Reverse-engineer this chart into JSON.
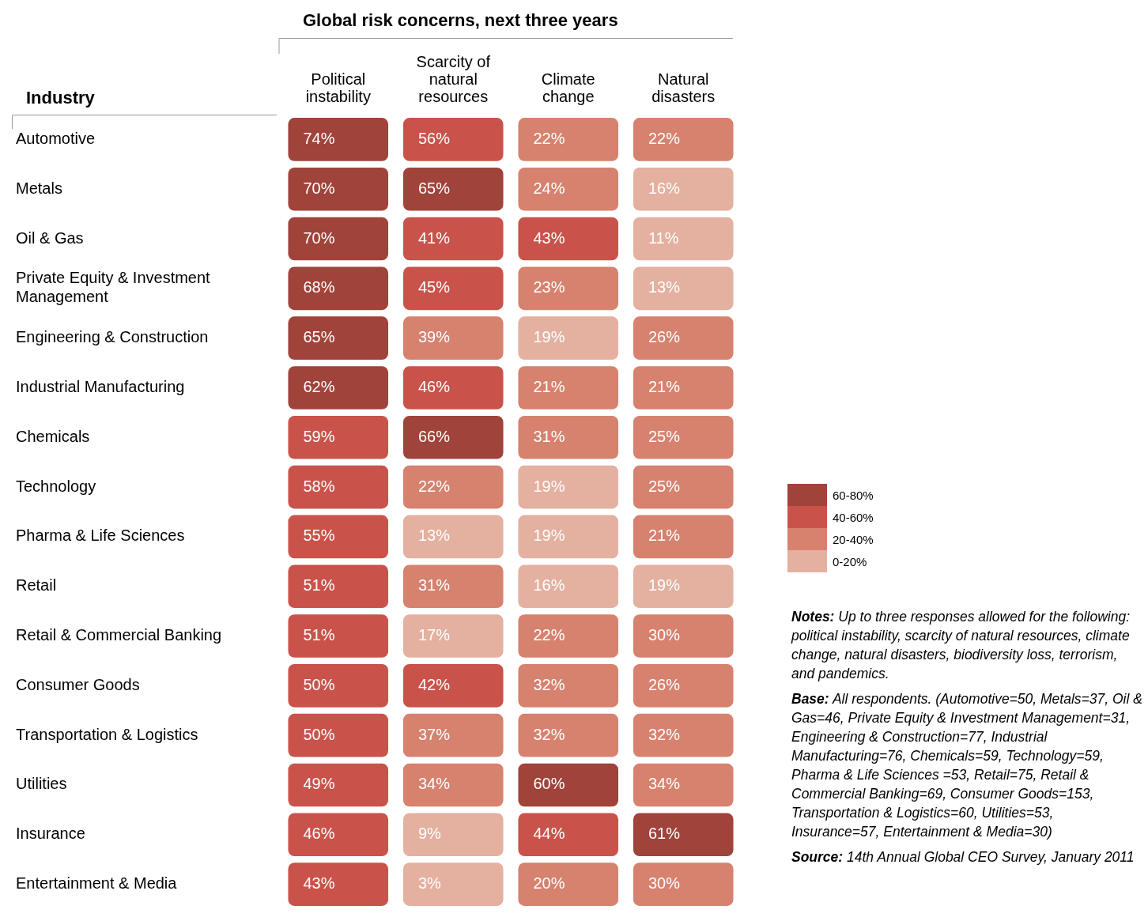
{
  "chart_data": {
    "type": "heatmap",
    "title": "Global risk concerns, next three years",
    "ylabel": "Industry",
    "categories": [
      "Political instability",
      "Scarcity of natural resources",
      "Climate change",
      "Natural disasters"
    ],
    "y_categories": [
      "Automotive",
      "Metals",
      "Oil & Gas",
      "Private Equity & Investment Management",
      "Engineering & Construction",
      "Industrial Manufacturing",
      "Chemicals",
      "Technology",
      "Pharma & Life Sciences",
      "Retail",
      "Retail & Commercial Banking",
      "Consumer Goods",
      "Transportation & Logistics",
      "Utilities",
      "Insurance",
      "Entertainment & Media"
    ],
    "cells": [
      [
        74,
        56,
        22,
        22
      ],
      [
        70,
        65,
        24,
        16
      ],
      [
        70,
        41,
        43,
        11
      ],
      [
        68,
        45,
        23,
        13
      ],
      [
        65,
        39,
        19,
        26
      ],
      [
        62,
        46,
        21,
        21
      ],
      [
        59,
        66,
        31,
        25
      ],
      [
        58,
        22,
        19,
        25
      ],
      [
        55,
        13,
        19,
        21
      ],
      [
        51,
        31,
        16,
        19
      ],
      [
        51,
        17,
        22,
        30
      ],
      [
        50,
        42,
        32,
        26
      ],
      [
        50,
        37,
        32,
        32
      ],
      [
        49,
        34,
        60,
        34
      ],
      [
        46,
        9,
        44,
        61
      ],
      [
        43,
        3,
        20,
        30
      ]
    ],
    "cell_labels": [
      [
        "74%",
        "56%",
        "22%",
        "22%"
      ],
      [
        "70%",
        "65%",
        "24%",
        "16%"
      ],
      [
        "70%",
        "41%",
        "43%",
        "11%"
      ],
      [
        "68%",
        "45%",
        "23%",
        "13%"
      ],
      [
        "65%",
        "39%",
        "19%",
        "26%"
      ],
      [
        "62%",
        "46%",
        "21%",
        "21%"
      ],
      [
        "59%",
        "66%",
        "31%",
        "25%"
      ],
      [
        "58%",
        "22%",
        "19%",
        "25%"
      ],
      [
        "55%",
        "13%",
        "19%",
        "21%"
      ],
      [
        "51%",
        "31%",
        "16%",
        "19%"
      ],
      [
        "51%",
        "17%",
        "22%",
        "30%"
      ],
      [
        "50%",
        "42%",
        "32%",
        "26%"
      ],
      [
        "50%",
        "37%",
        "32%",
        "32%"
      ],
      [
        "49%",
        "34%",
        "60%",
        "34%"
      ],
      [
        "46%",
        "9%",
        "44%",
        "61%"
      ],
      [
        "43%",
        "3%",
        "20%",
        "30%"
      ]
    ],
    "clim": [
      0,
      80
    ],
    "cticks": [
      {
        "value": 10,
        "label": "0-20%"
      },
      {
        "value": 30,
        "label": "20-40%"
      },
      {
        "value": 50,
        "label": "40-60%"
      },
      {
        "value": 70,
        "label": "60-80%"
      }
    ],
    "colors": [
      "#e4b0a0",
      "#d6826f",
      "#c9534a",
      "#a0433a"
    ],
    "annotations": [
      "Notes: Up to three responses allowed for the following: political instability, scarcity of natural resources, climate change, natural disasters, biodiversity loss, terrorism, and pandemics.",
      "Base: All respondents. (Automotive=50, Metals=37, Oil & Gas=46, Private Equity & Investment Management=31, Engineering & Construction=77, Industrial Manufacturing=76, Chemicals=59, Technology=59, Pharma & Life Sciences =53, Retail=75, Retail & Commercial Banking=69, Consumer Goods=153, Transportation & Logistics=60, Utilities=53, Insurance=57, Entertainment & Media=30)",
      "Source: 14th Annual Global CEO Survey, January 2011"
    ]
  }
}
